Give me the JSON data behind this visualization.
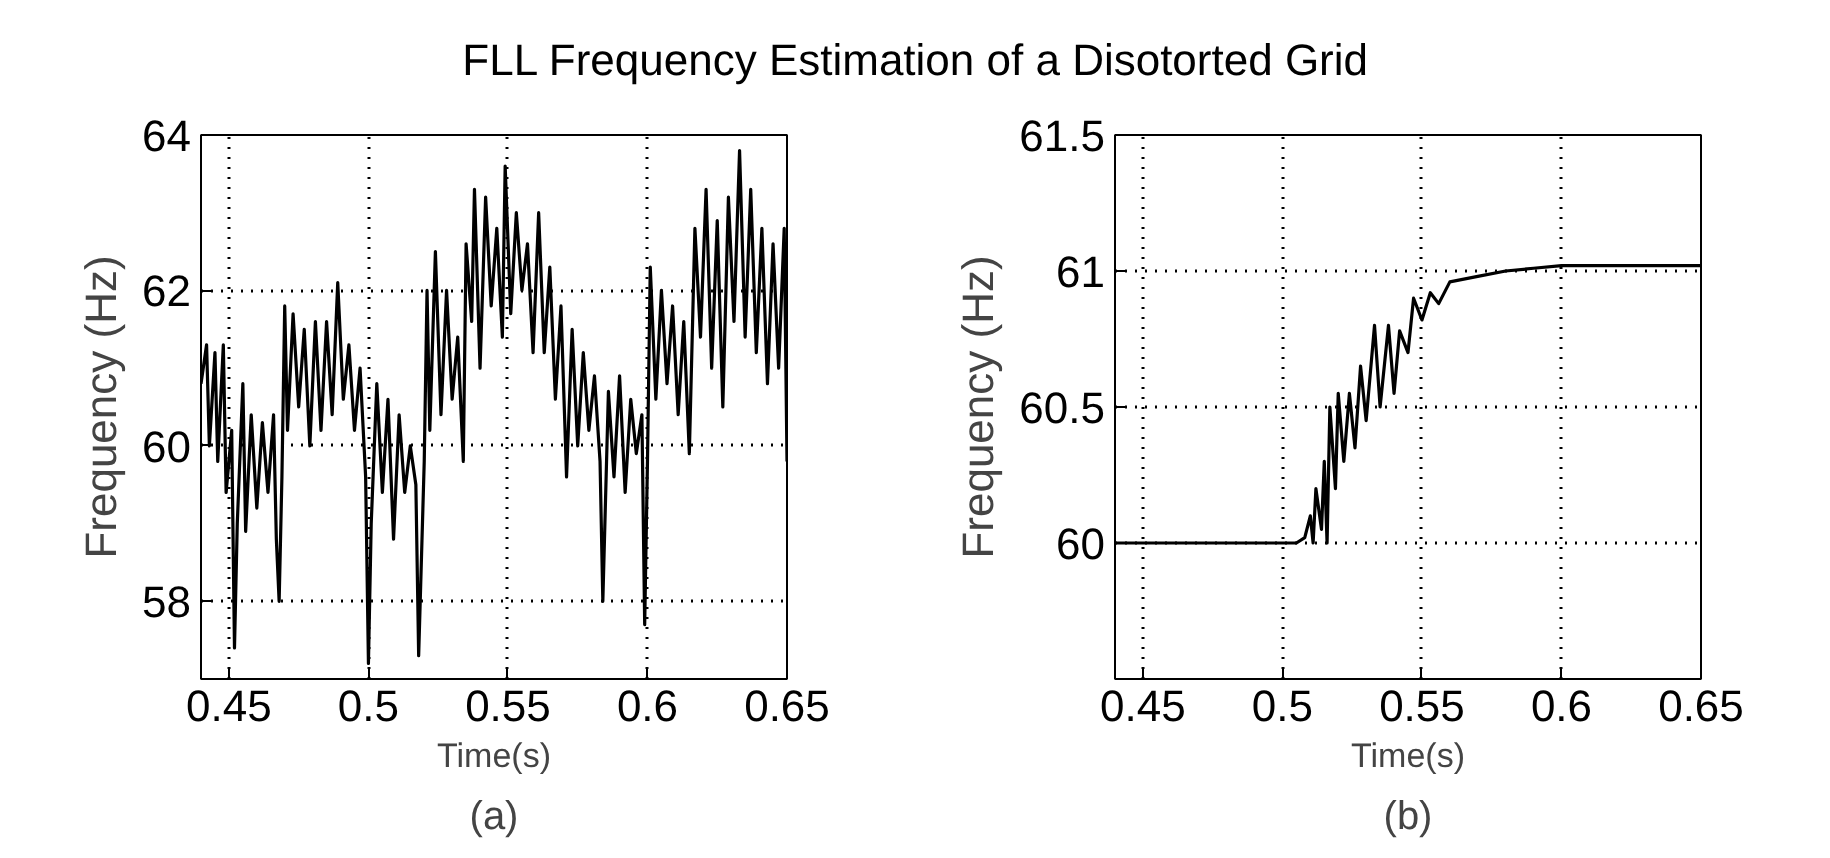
{
  "chart_data": [
    {
      "type": "line",
      "title": "FLL Frequency Estimation of a Disotorted Grid",
      "xlabel": "Time(s)",
      "ylabel": "Frequency (Hz)",
      "annotations": [
        "(a)"
      ],
      "xlim": [
        0.44,
        0.65
      ],
      "ylim": [
        57,
        64
      ],
      "xticks": [
        0.45,
        0.5,
        0.55,
        0.6,
        0.65
      ],
      "yticks": [
        58,
        60,
        62,
        64
      ],
      "grid": true,
      "line_style": "solid",
      "series": [
        {
          "color": "#000000",
          "x": [
            0.44,
            0.442,
            0.443,
            0.445,
            0.446,
            0.448,
            0.449,
            0.451,
            0.452,
            0.453,
            0.455,
            0.456,
            0.458,
            0.46,
            0.462,
            0.464,
            0.466,
            0.467,
            0.468,
            0.469,
            0.47,
            0.471,
            0.473,
            0.475,
            0.477,
            0.479,
            0.481,
            0.483,
            0.485,
            0.487,
            0.489,
            0.491,
            0.493,
            0.495,
            0.497,
            0.499,
            0.5,
            0.501,
            0.503,
            0.505,
            0.507,
            0.509,
            0.511,
            0.513,
            0.515,
            0.517,
            0.518,
            0.52,
            0.521,
            0.522,
            0.524,
            0.526,
            0.528,
            0.53,
            0.532,
            0.534,
            0.535,
            0.537,
            0.538,
            0.54,
            0.542,
            0.544,
            0.546,
            0.548,
            0.549,
            0.551,
            0.553,
            0.555,
            0.557,
            0.559,
            0.561,
            0.563,
            0.565,
            0.567,
            0.569,
            0.571,
            0.573,
            0.575,
            0.577,
            0.579,
            0.581,
            0.583,
            0.584,
            0.586,
            0.588,
            0.59,
            0.592,
            0.594,
            0.596,
            0.598,
            0.599,
            0.6,
            0.601,
            0.603,
            0.605,
            0.607,
            0.609,
            0.611,
            0.613,
            0.615,
            0.617,
            0.619,
            0.621,
            0.623,
            0.625,
            0.627,
            0.629,
            0.631,
            0.633,
            0.635,
            0.637,
            0.639,
            0.641,
            0.643,
            0.645,
            0.647,
            0.649,
            0.65
          ],
          "values": [
            60.8,
            61.3,
            60.0,
            61.2,
            59.8,
            61.3,
            59.4,
            60.2,
            57.4,
            59.0,
            60.8,
            58.9,
            60.4,
            59.2,
            60.3,
            59.4,
            60.4,
            58.8,
            58.0,
            59.6,
            61.8,
            60.2,
            61.7,
            60.5,
            61.5,
            60.0,
            61.6,
            60.2,
            61.6,
            60.4,
            62.1,
            60.6,
            61.3,
            60.2,
            61.0,
            59.6,
            57.2,
            59.0,
            60.8,
            59.4,
            60.6,
            58.8,
            60.4,
            59.4,
            60.0,
            59.5,
            57.3,
            59.8,
            62.0,
            60.2,
            62.5,
            60.4,
            62.0,
            60.6,
            61.4,
            59.8,
            62.6,
            61.6,
            63.3,
            61.0,
            63.2,
            61.8,
            62.8,
            61.4,
            63.6,
            61.7,
            63.0,
            62.0,
            62.6,
            61.2,
            63.0,
            61.2,
            62.3,
            60.6,
            61.8,
            59.6,
            61.5,
            60.0,
            61.2,
            60.2,
            60.9,
            59.8,
            58.0,
            60.7,
            59.6,
            60.9,
            59.4,
            60.6,
            59.9,
            60.4,
            57.7,
            59.8,
            62.3,
            60.6,
            62.0,
            60.8,
            61.8,
            60.4,
            61.6,
            59.9,
            62.8,
            61.4,
            63.3,
            61.0,
            62.9,
            60.5,
            63.2,
            61.6,
            63.8,
            61.4,
            63.3,
            61.2,
            62.8,
            60.8,
            62.6,
            61.0,
            62.8,
            59.8
          ]
        }
      ]
    },
    {
      "type": "line",
      "xlabel": "Time(s)",
      "ylabel": "Frequency (Hz)",
      "annotations": [
        "(b)"
      ],
      "xlim": [
        0.44,
        0.65
      ],
      "ylim": [
        59.5,
        61.5
      ],
      "xticks": [
        0.45,
        0.5,
        0.55,
        0.6,
        0.65
      ],
      "yticks": [
        60,
        60.5,
        61,
        61.5
      ],
      "grid": true,
      "line_style": "solid",
      "series": [
        {
          "color": "#000000",
          "x": [
            0.44,
            0.505,
            0.508,
            0.51,
            0.511,
            0.512,
            0.514,
            0.515,
            0.516,
            0.517,
            0.519,
            0.52,
            0.522,
            0.524,
            0.526,
            0.528,
            0.53,
            0.533,
            0.535,
            0.538,
            0.54,
            0.542,
            0.545,
            0.547,
            0.55,
            0.553,
            0.556,
            0.56,
            0.565,
            0.57,
            0.58,
            0.59,
            0.6,
            0.65
          ],
          "values": [
            60,
            60,
            60.02,
            60.1,
            60.0,
            60.2,
            60.05,
            60.3,
            60.0,
            60.5,
            60.2,
            60.55,
            60.3,
            60.55,
            60.35,
            60.65,
            60.45,
            60.8,
            60.5,
            60.8,
            60.55,
            60.78,
            60.7,
            60.9,
            60.82,
            60.92,
            60.88,
            60.96,
            60.97,
            60.98,
            61.0,
            61.01,
            61.02,
            61.02
          ]
        }
      ]
    }
  ]
}
